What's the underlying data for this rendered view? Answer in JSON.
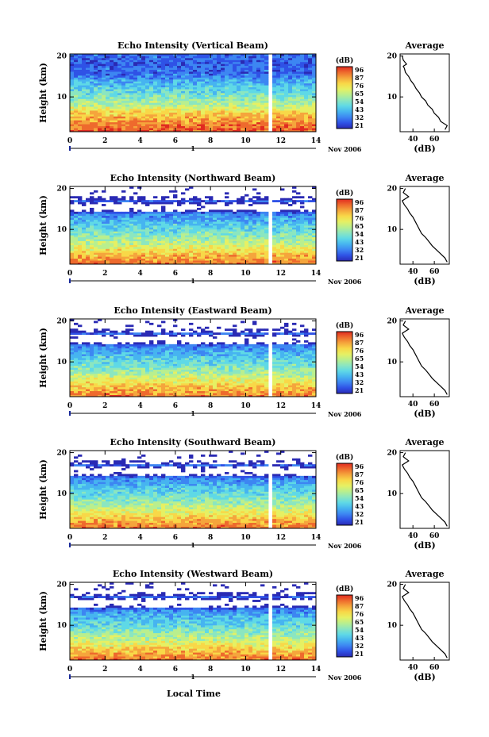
{
  "figure": {
    "xlabel": "Local Time",
    "date_label": "Nov 2006",
    "day_marker": "1",
    "ylabel": "Height (km)",
    "colorbar_unit": "(dB)",
    "profile_title": "Average",
    "profile_xlabel": "(dB)"
  },
  "colors": {
    "colormap": [
      "#2a2ab4",
      "#2f52e6",
      "#3d86f2",
      "#46b4f0",
      "#5fd9e6",
      "#8be6c0",
      "#b9ef8e",
      "#e6f063",
      "#f8d848",
      "#f5a53c",
      "#ee6a2d",
      "#e02a20"
    ],
    "gap": "#ffffff",
    "axis": "#000000"
  },
  "chart_data": [
    {
      "type": "heatmap",
      "title": "Echo Intensity (Vertical Beam)",
      "xlabel": "Local Time",
      "ylabel": "Height (km)",
      "x_ticks": [
        "0",
        "2",
        "4",
        "6",
        "8",
        "10",
        "12",
        "14"
      ],
      "y_ticks": [
        "10",
        "20"
      ],
      "xlim": [
        0,
        14
      ],
      "ylim": [
        1.5,
        20.5
      ],
      "colorbar": {
        "label": "(dB)",
        "ticks": [
          "96",
          "87",
          "76",
          "65",
          "54",
          "43",
          "32",
          "21"
        ]
      },
      "data_gap": [
        11.2,
        11.4
      ],
      "intensity_profile": {
        "x": [
          88,
          82,
          75,
          62,
          55,
          48,
          42,
          36,
          32,
          34,
          31,
          33
        ],
        "y": [
          2,
          4,
          6,
          8,
          10,
          12,
          14,
          15,
          16,
          17,
          18,
          19.5
        ]
      },
      "average_profile": {
        "title": "Average",
        "xlabel": "(dB)",
        "x_ticks": [
          "40",
          "60"
        ],
        "xlim": [
          28,
          74
        ],
        "y_ticks": [
          "10",
          "20"
        ],
        "x": [
          70,
          72,
          66,
          64,
          60,
          58,
          54,
          52,
          48,
          46,
          43,
          41,
          38,
          36,
          33,
          32,
          31,
          34,
          31,
          30
        ],
        "y": [
          2,
          3,
          4,
          5,
          6,
          7,
          8,
          9,
          10,
          11,
          12,
          13,
          14,
          15,
          16,
          17,
          17.5,
          18,
          19,
          20
        ]
      }
    },
    {
      "type": "heatmap",
      "title": "Echo Intensity (Northward Beam)",
      "xlabel": "Local Time",
      "ylabel": "Height (km)",
      "x_ticks": [
        "0",
        "2",
        "4",
        "6",
        "8",
        "10",
        "12",
        "14"
      ],
      "y_ticks": [
        "10",
        "20"
      ],
      "xlim": [
        0,
        14
      ],
      "ylim": [
        1.5,
        20.5
      ],
      "colorbar": {
        "label": "(dB)",
        "ticks": [
          "96",
          "87",
          "76",
          "65",
          "54",
          "43",
          "32",
          "21"
        ]
      },
      "data_gap": [
        11.2,
        11.4
      ],
      "intensity_profile": {
        "x": [
          84,
          76,
          66,
          58,
          50,
          44,
          36,
          0,
          0,
          34,
          0,
          0
        ],
        "y": [
          2,
          4,
          6,
          8,
          10,
          12,
          14,
          15,
          16,
          17,
          18,
          19.5
        ]
      },
      "average_profile": {
        "title": "Average",
        "xlabel": "(dB)",
        "x_ticks": [
          "40",
          "60"
        ],
        "xlim": [
          28,
          74
        ],
        "y_ticks": [
          "10",
          "20"
        ],
        "x": [
          72,
          70,
          66,
          62,
          58,
          55,
          52,
          48,
          46,
          44,
          42,
          40,
          37,
          35,
          32,
          30,
          33,
          36,
          31,
          33
        ],
        "y": [
          2,
          3,
          4,
          5,
          6,
          7,
          8,
          9,
          10,
          11,
          12,
          13,
          14,
          15,
          16,
          17,
          17.5,
          18,
          19,
          20
        ]
      }
    },
    {
      "type": "heatmap",
      "title": "Echo Intensity (Eastward Beam)",
      "xlabel": "Local Time",
      "ylabel": "Height (km)",
      "x_ticks": [
        "0",
        "2",
        "4",
        "6",
        "8",
        "10",
        "12",
        "14"
      ],
      "y_ticks": [
        "10",
        "20"
      ],
      "xlim": [
        0,
        14
      ],
      "ylim": [
        1.5,
        20.5
      ],
      "colorbar": {
        "label": "(dB)",
        "ticks": [
          "96",
          "87",
          "76",
          "65",
          "54",
          "43",
          "32",
          "21"
        ]
      },
      "data_gap": [
        11.2,
        11.4
      ],
      "intensity_profile": {
        "x": [
          84,
          76,
          66,
          58,
          50,
          44,
          36,
          0,
          0,
          34,
          0,
          0
        ],
        "y": [
          2,
          4,
          6,
          8,
          10,
          12,
          14,
          15,
          16,
          17,
          18,
          19.5
        ]
      },
      "average_profile": {
        "title": "Average",
        "xlabel": "(dB)",
        "x_ticks": [
          "40",
          "60"
        ],
        "xlim": [
          28,
          74
        ],
        "y_ticks": [
          "10",
          "20"
        ],
        "x": [
          72,
          70,
          66,
          62,
          58,
          55,
          52,
          48,
          46,
          44,
          42,
          40,
          37,
          35,
          32,
          30,
          33,
          36,
          31,
          33
        ],
        "y": [
          2,
          3,
          4,
          5,
          6,
          7,
          8,
          9,
          10,
          11,
          12,
          13,
          14,
          15,
          16,
          17,
          17.5,
          18,
          19,
          20
        ]
      }
    },
    {
      "type": "heatmap",
      "title": "Echo Intensity (Southward Beam)",
      "xlabel": "Local Time",
      "ylabel": "Height (km)",
      "x_ticks": [
        "0",
        "2",
        "4",
        "6",
        "8",
        "10",
        "12",
        "14"
      ],
      "y_ticks": [
        "10",
        "20"
      ],
      "xlim": [
        0,
        14
      ],
      "ylim": [
        1.5,
        20.5
      ],
      "colorbar": {
        "label": "(dB)",
        "ticks": [
          "96",
          "87",
          "76",
          "65",
          "54",
          "43",
          "32",
          "21"
        ]
      },
      "data_gap": [
        11.2,
        11.4
      ],
      "intensity_profile": {
        "x": [
          84,
          76,
          66,
          58,
          50,
          44,
          36,
          0,
          0,
          34,
          0,
          0
        ],
        "y": [
          2,
          4,
          6,
          8,
          10,
          12,
          14,
          15,
          16,
          17,
          18,
          19.5
        ]
      },
      "average_profile": {
        "title": "Average",
        "xlabel": "(dB)",
        "x_ticks": [
          "40",
          "60"
        ],
        "xlim": [
          28,
          74
        ],
        "y_ticks": [
          "10",
          "20"
        ],
        "x": [
          72,
          70,
          66,
          62,
          58,
          55,
          52,
          48,
          46,
          44,
          42,
          40,
          37,
          35,
          32,
          30,
          33,
          36,
          31,
          33
        ],
        "y": [
          2,
          3,
          4,
          5,
          6,
          7,
          8,
          9,
          10,
          11,
          12,
          13,
          14,
          15,
          16,
          17,
          17.5,
          18,
          19,
          20
        ]
      }
    },
    {
      "type": "heatmap",
      "title": "Echo Intensity (Westward Beam)",
      "xlabel": "Local Time",
      "ylabel": "Height (km)",
      "x_ticks": [
        "0",
        "2",
        "4",
        "6",
        "8",
        "10",
        "12",
        "14"
      ],
      "y_ticks": [
        "10",
        "20"
      ],
      "xlim": [
        0,
        14
      ],
      "ylim": [
        1.5,
        20.5
      ],
      "colorbar": {
        "label": "(dB)",
        "ticks": [
          "96",
          "87",
          "76",
          "65",
          "54",
          "43",
          "32",
          "21"
        ]
      },
      "data_gap": [
        11.2,
        11.4
      ],
      "intensity_profile": {
        "x": [
          84,
          76,
          66,
          58,
          50,
          44,
          36,
          0,
          0,
          34,
          0,
          0
        ],
        "y": [
          2,
          4,
          6,
          8,
          10,
          12,
          14,
          15,
          16,
          17,
          18,
          19.5
        ]
      },
      "average_profile": {
        "title": "Average",
        "xlabel": "(dB)",
        "x_ticks": [
          "40",
          "60"
        ],
        "xlim": [
          28,
          74
        ],
        "y_ticks": [
          "10",
          "20"
        ],
        "x": [
          72,
          70,
          66,
          62,
          58,
          55,
          52,
          48,
          46,
          44,
          42,
          40,
          37,
          35,
          32,
          30,
          33,
          36,
          31,
          33
        ],
        "y": [
          2,
          3,
          4,
          5,
          6,
          7,
          8,
          9,
          10,
          11,
          12,
          13,
          14,
          15,
          16,
          17,
          17.5,
          18,
          19,
          20
        ]
      }
    }
  ]
}
